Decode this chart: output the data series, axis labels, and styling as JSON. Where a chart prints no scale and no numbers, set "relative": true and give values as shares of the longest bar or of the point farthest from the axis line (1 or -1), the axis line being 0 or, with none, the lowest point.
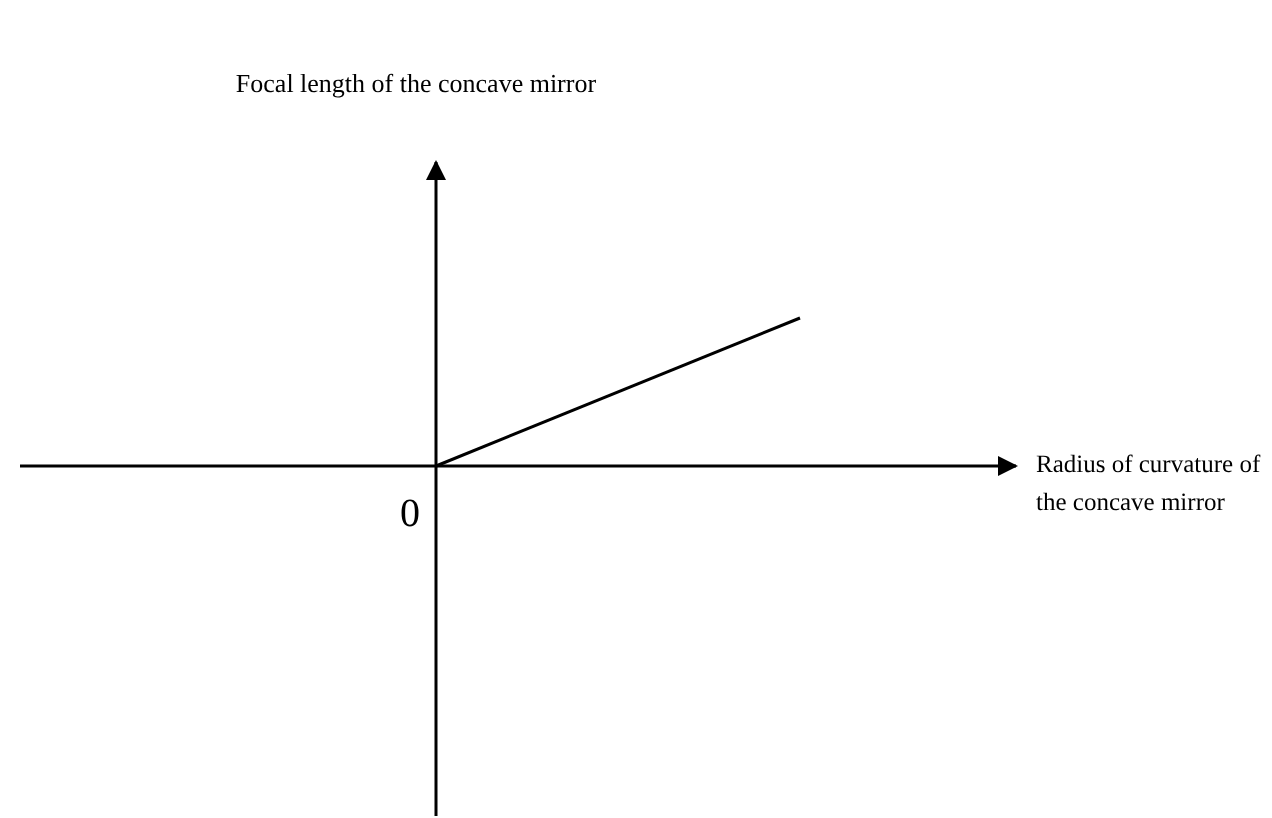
{
  "chart_data": {
    "type": "line",
    "relative": true,
    "xlabel": "Radius of curvature of the concave mirror",
    "categories": [
      null,
      null
    ],
    "series": [
      {
        "color": "#000000",
        "values": [
          0,
          1
        ]
      }
    ],
    "annotations": [
      "Focal length of the concave mirror",
      "0"
    ],
    "marker": "none",
    "line_style": "solid"
  }
}
